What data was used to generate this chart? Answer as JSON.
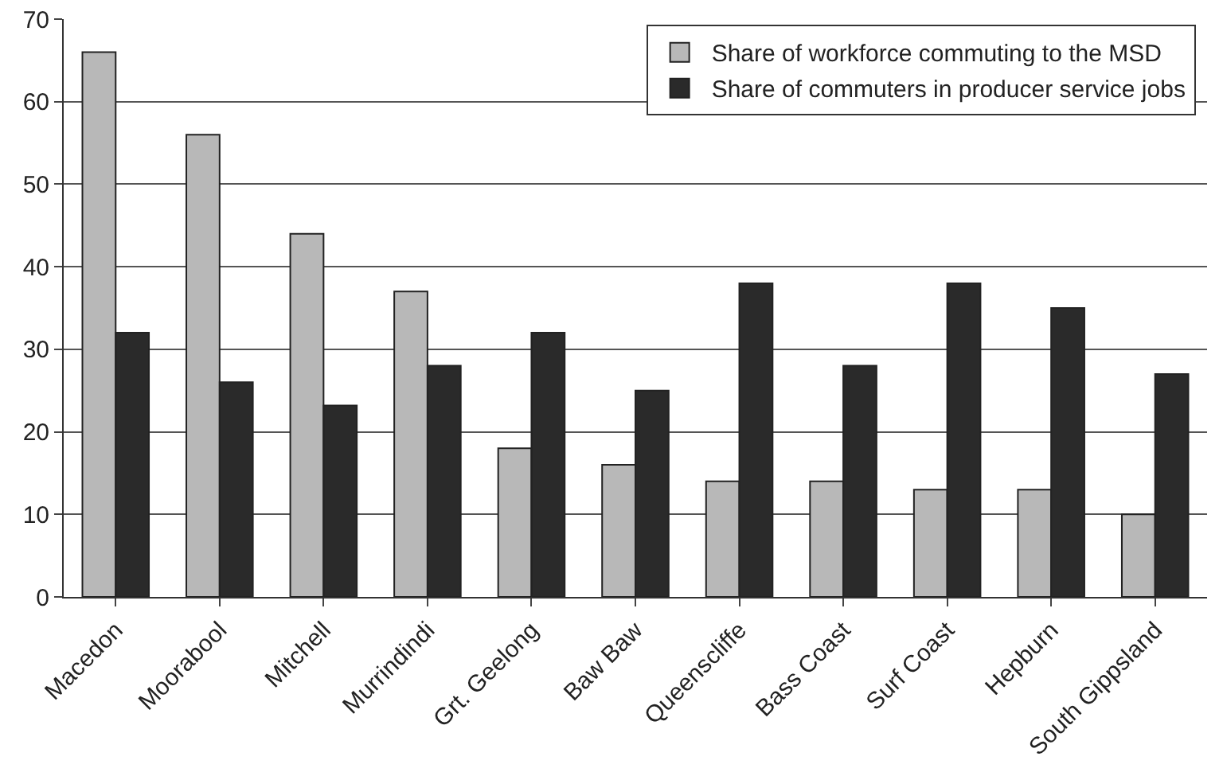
{
  "chart_data": {
    "type": "bar",
    "categories": [
      "Macedon",
      "Moorabool",
      "Mitchell",
      "Murrindindi",
      "Grt. Geelong",
      "Baw Baw",
      "Queenscliffe",
      "Bass Coast",
      "Surf Coast",
      "Hepburn",
      "South Gippsland"
    ],
    "series": [
      {
        "name": "Share of workforce commuting to the MSD",
        "color": "#b8b8b8",
        "values": [
          66,
          56,
          44,
          37,
          18,
          16,
          14,
          14,
          13,
          13,
          10
        ]
      },
      {
        "name": "Share of commuters in producer service jobs",
        "color": "#2a2a2a",
        "values": [
          32,
          26,
          23.2,
          28,
          32,
          25,
          38,
          28,
          38,
          35,
          27
        ]
      }
    ],
    "ylim": [
      0,
      70
    ],
    "yticks": [
      0,
      10,
      20,
      30,
      40,
      50,
      60,
      70
    ],
    "grid": "y",
    "legend": "top right"
  }
}
